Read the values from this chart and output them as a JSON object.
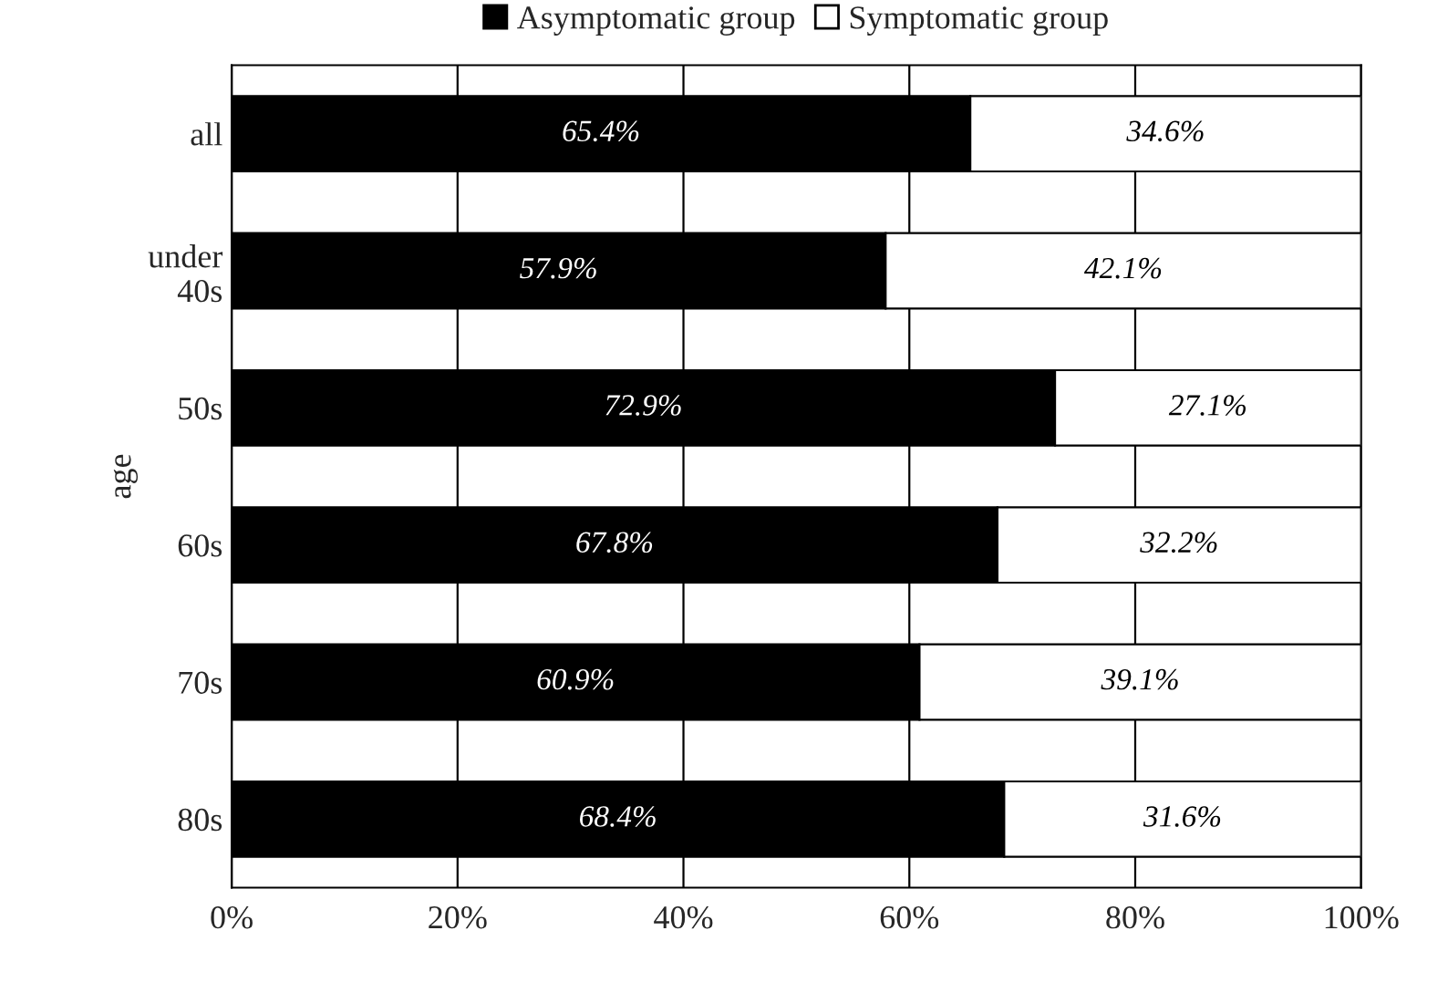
{
  "chart_data": {
    "type": "bar",
    "orientation": "horizontal",
    "stacked": true,
    "ylabel": "age",
    "categories": [
      "all",
      "under\n40s",
      "50s",
      "60s",
      "70s",
      "80s"
    ],
    "series": [
      {
        "name": "Asymptomatic group",
        "color": "#000000",
        "values": [
          65.4,
          57.9,
          72.9,
          67.8,
          60.9,
          68.4
        ],
        "value_labels": [
          "65.4%",
          "57.9%",
          "72.9%",
          "67.8%",
          "60.9%",
          "68.4%"
        ]
      },
      {
        "name": "Symptomatic group",
        "color": "#ffffff",
        "values": [
          34.6,
          42.1,
          27.1,
          32.2,
          39.1,
          31.6
        ],
        "value_labels": [
          "34.6%",
          "42.1%",
          "27.1%",
          "32.2%",
          "39.1%",
          "31.6%"
        ]
      }
    ],
    "xlim": [
      0,
      100
    ],
    "xticks": [
      {
        "value": 0,
        "label": "0%"
      },
      {
        "value": 20,
        "label": "20%"
      },
      {
        "value": 40,
        "label": "40%"
      },
      {
        "value": 60,
        "label": "60%"
      },
      {
        "value": 80,
        "label": "80%"
      },
      {
        "value": 100,
        "label": "100%"
      }
    ],
    "grid": "x",
    "legend": "top"
  }
}
